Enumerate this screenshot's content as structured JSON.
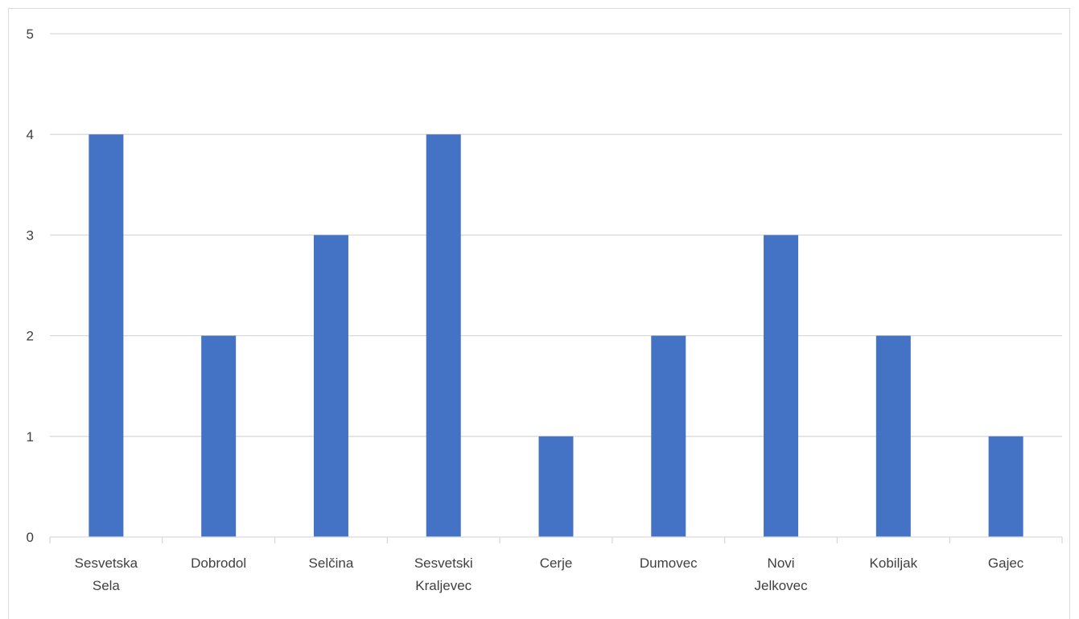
{
  "chart_data": {
    "type": "bar",
    "title": "",
    "xlabel": "",
    "ylabel": "",
    "categories": [
      [
        "Sesvetska",
        "Sela"
      ],
      [
        "Dobrodol"
      ],
      [
        "Selčina"
      ],
      [
        "Sesvetski",
        "Kraljevec"
      ],
      [
        "Cerje"
      ],
      [
        "Dumovec"
      ],
      [
        "Novi",
        "Jelkovec"
      ],
      [
        "Kobiljak"
      ],
      [
        "Gajec"
      ]
    ],
    "values": [
      4,
      2,
      3,
      4,
      1,
      2,
      3,
      2,
      1
    ],
    "ylim": [
      0,
      5
    ],
    "yticks": [
      "0",
      "1",
      "2",
      "3",
      "4",
      "5"
    ],
    "grid": true,
    "legend": "none",
    "bar_color": "#4472c4",
    "grid_color": "#d9d9d9"
  }
}
